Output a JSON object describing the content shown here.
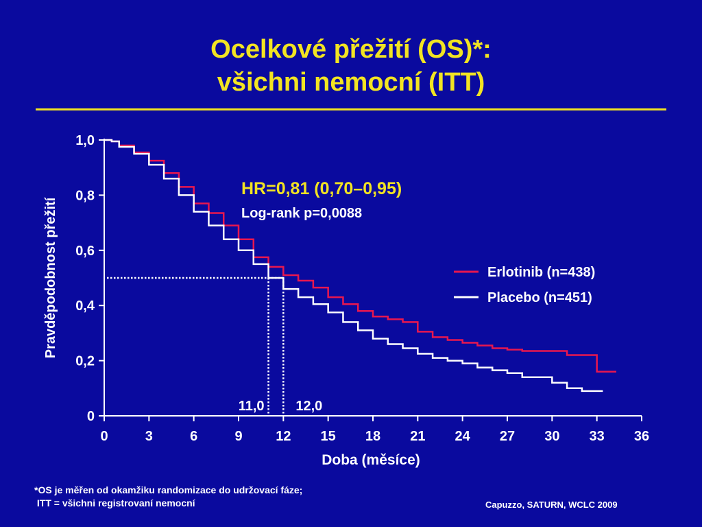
{
  "title": {
    "line1": "Ocelkové přežití (OS)*:",
    "line2": "všichni nemocní (ITT)"
  },
  "chart_data": {
    "type": "line",
    "xlabel": "Doba (měsíce)",
    "ylabel": "Pravděpodobnost přežití",
    "xlim": [
      0,
      36
    ],
    "ylim": [
      0,
      1.0
    ],
    "x_ticks": [
      "0",
      "3",
      "6",
      "9",
      "12",
      "15",
      "18",
      "21",
      "24",
      "27",
      "30",
      "33",
      "36"
    ],
    "y_ticks": [
      "0",
      "0,2",
      "0,4",
      "0,6",
      "0,8",
      "1,0"
    ],
    "y_tick_values": [
      0,
      0.2,
      0.4,
      0.6,
      0.8,
      1.0
    ],
    "annotations": {
      "hr": "HR=0,81 (0,70–0,95)",
      "logrank": "Log-rank p=0,0088",
      "median_placebo_label": "11,0",
      "median_erlotinib_label": "12,0",
      "median_placebo": 11.0,
      "median_erlotinib": 12.0,
      "median_survival": 0.5
    },
    "legend_position": "right",
    "series": [
      {
        "name": "Erlotinib (n=438)",
        "color": "#e8174f",
        "x": [
          0,
          0.5,
          1,
          2,
          3,
          4,
          5,
          6,
          7,
          8,
          9,
          10,
          11,
          12,
          13,
          14,
          15,
          16,
          17,
          18,
          19,
          20,
          21,
          22,
          23,
          24,
          25,
          26,
          27,
          28,
          29,
          30,
          31,
          32,
          32.8,
          33,
          34.3
        ],
        "y": [
          1.0,
          0.995,
          0.98,
          0.955,
          0.925,
          0.88,
          0.83,
          0.77,
          0.735,
          0.69,
          0.64,
          0.575,
          0.54,
          0.51,
          0.49,
          0.465,
          0.43,
          0.405,
          0.38,
          0.36,
          0.35,
          0.34,
          0.305,
          0.285,
          0.275,
          0.265,
          0.255,
          0.245,
          0.24,
          0.235,
          0.235,
          0.235,
          0.22,
          0.22,
          0.22,
          0.16,
          0.16
        ]
      },
      {
        "name": "Placebo (n=451)",
        "color": "#ffffff",
        "x": [
          0,
          0.5,
          1,
          2,
          3,
          4,
          5,
          6,
          7,
          8,
          9,
          10,
          11,
          12,
          13,
          14,
          15,
          16,
          17,
          18,
          19,
          20,
          21,
          22,
          23,
          24,
          25,
          26,
          27,
          28,
          29,
          30,
          31,
          32,
          33,
          33.4
        ],
        "y": [
          1.0,
          0.995,
          0.975,
          0.95,
          0.91,
          0.86,
          0.8,
          0.74,
          0.69,
          0.64,
          0.6,
          0.55,
          0.5,
          0.46,
          0.43,
          0.405,
          0.375,
          0.34,
          0.31,
          0.28,
          0.26,
          0.245,
          0.225,
          0.21,
          0.2,
          0.19,
          0.175,
          0.165,
          0.155,
          0.14,
          0.14,
          0.12,
          0.1,
          0.09,
          0.09,
          0.09
        ]
      }
    ]
  },
  "footnote": {
    "line1": "*OS je měřen od okamžiku randomizace do udržovací fáze;",
    "line2": " ITT = všichni registrovaní nemocní"
  },
  "source": "Capuzzo, SATURN, WCLC 2009"
}
